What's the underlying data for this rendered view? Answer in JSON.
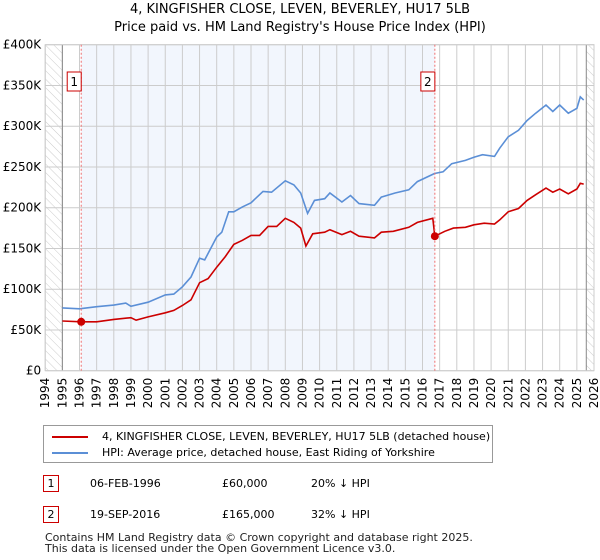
{
  "header": {
    "title": "4, KINGFISHER CLOSE, LEVEN, BEVERLEY, HU17 5LB",
    "subtitle": "Price paid vs. HM Land Registry's House Price Index (HPI)"
  },
  "chart_data": {
    "type": "line",
    "title": "4, KINGFISHER CLOSE, LEVEN, BEVERLEY, HU17 5LB",
    "subtitle": "Price paid vs. HM Land Registry's House Price Index (HPI)",
    "xlim": [
      1994,
      2026
    ],
    "ylim": [
      0,
      400000
    ],
    "x_ticks": [
      "1994",
      "1995",
      "1996",
      "1997",
      "1998",
      "1999",
      "2000",
      "2001",
      "2002",
      "2003",
      "2004",
      "2005",
      "2006",
      "2007",
      "2008",
      "2009",
      "2010",
      "2011",
      "2012",
      "2013",
      "2014",
      "2015",
      "2016",
      "2017",
      "2018",
      "2019",
      "2020",
      "2021",
      "2022",
      "2023",
      "2024",
      "2025",
      "2026"
    ],
    "y_ticks": [
      {
        "v": 0,
        "label": "£0"
      },
      {
        "v": 50000,
        "label": "£50K"
      },
      {
        "v": 100000,
        "label": "£100K"
      },
      {
        "v": 150000,
        "label": "£150K"
      },
      {
        "v": 200000,
        "label": "£200K"
      },
      {
        "v": 250000,
        "label": "£250K"
      },
      {
        "v": 300000,
        "label": "£300K"
      },
      {
        "v": 350000,
        "label": "£350K"
      },
      {
        "v": 400000,
        "label": "£400K"
      }
    ],
    "grid": true,
    "series": [
      {
        "name": "4, KINGFISHER CLOSE, LEVEN, BEVERLEY, HU17 5LB (detached house)",
        "color": "#cc0000",
        "x": [
          1995,
          1996.1,
          1997,
          1998,
          1999,
          1999.3,
          2000,
          2001,
          2001.5,
          2002,
          2002.5,
          2003,
          2003.5,
          2004,
          2004.5,
          2005,
          2005.5,
          2006,
          2006.5,
          2007,
          2007.5,
          2008,
          2008.5,
          2008.9,
          2009.2,
          2009.6,
          2010.3,
          2010.6,
          2011.3,
          2011.8,
          2012.3,
          2013.2,
          2013.6,
          2014.3,
          2015.2,
          2015.7,
          2016.6,
          2016.72,
          2017.3,
          2017.8,
          2018.5,
          2019,
          2019.6,
          2020.2,
          2020.5,
          2021,
          2021.6,
          2022.1,
          2022.6,
          2023.2,
          2023.6,
          2024,
          2024.5,
          2025,
          2025.2,
          2025.4
        ],
        "y": [
          61000,
          60000,
          60000,
          63000,
          65000,
          62000,
          66000,
          71000,
          74000,
          80000,
          87000,
          108000,
          113000,
          127000,
          140000,
          155000,
          160000,
          166000,
          166000,
          177000,
          177000,
          187000,
          182000,
          175000,
          153000,
          168000,
          170000,
          173000,
          167000,
          171000,
          165000,
          163000,
          170000,
          171000,
          176000,
          182000,
          187000,
          165000,
          171000,
          175000,
          176000,
          179000,
          181000,
          180000,
          185000,
          195000,
          199000,
          209000,
          216000,
          224000,
          219000,
          223000,
          217000,
          223000,
          230000,
          229000
        ]
      },
      {
        "name": "HPI: Average price, detached house, East Riding of Yorkshire",
        "color": "#5b8fd6",
        "x": [
          1995,
          1996,
          1997,
          1998,
          1998.7,
          1999,
          2000,
          2001,
          2001.5,
          2002,
          2002.5,
          2003,
          2003.3,
          2004,
          2004.3,
          2004.7,
          2005,
          2005.5,
          2006,
          2006.7,
          2007.2,
          2008,
          2008.5,
          2008.9,
          2009.3,
          2009.7,
          2010.3,
          2010.6,
          2011.3,
          2011.8,
          2012.3,
          2013.2,
          2013.6,
          2014.4,
          2015.2,
          2015.7,
          2016.7,
          2017.2,
          2017.7,
          2018.5,
          2019,
          2019.5,
          2020.2,
          2020.5,
          2021,
          2021.6,
          2022.1,
          2022.6,
          2023.2,
          2023.6,
          2024,
          2024.5,
          2025,
          2025.2,
          2025.4
        ],
        "y": [
          77000,
          76000,
          78500,
          80500,
          83000,
          79000,
          84000,
          93000,
          94000,
          103000,
          115000,
          138000,
          136000,
          164000,
          170000,
          195000,
          195000,
          201000,
          206000,
          220000,
          219000,
          233000,
          228000,
          218000,
          193000,
          209000,
          211000,
          218000,
          207000,
          215000,
          205000,
          203000,
          213000,
          218000,
          222000,
          232000,
          242000,
          244000,
          254000,
          258000,
          262000,
          265000,
          263000,
          273000,
          287000,
          295000,
          307000,
          316000,
          326000,
          318000,
          326000,
          316000,
          322000,
          336000,
          332000
        ]
      }
    ],
    "annotations": [
      {
        "label": "1",
        "x": 1996.1,
        "y": 60000
      },
      {
        "label": "2",
        "x": 2016.72,
        "y": 165000
      }
    ],
    "shaded_range": [
      1996.1,
      2016.72
    ],
    "hatched_ranges": [
      [
        1994,
        1995
      ],
      [
        2025.55,
        2026
      ]
    ],
    "legend_position": "bottom"
  },
  "legend": {
    "items": [
      {
        "label": "4, KINGFISHER CLOSE, LEVEN, BEVERLEY, HU17 5LB (detached house)",
        "color": "#cc0000"
      },
      {
        "label": "HPI: Average price, detached house, East Riding of Yorkshire",
        "color": "#5b8fd6"
      }
    ]
  },
  "sales": [
    {
      "num": "1",
      "date": "06-FEB-1996",
      "price": "£60,000",
      "hpi": "20% ↓ HPI"
    },
    {
      "num": "2",
      "date": "19-SEP-2016",
      "price": "£165,000",
      "hpi": "32% ↓ HPI"
    }
  ],
  "footer": {
    "line1": "Contains HM Land Registry data © Crown copyright and database right 2025.",
    "line2": "This data is licensed under the Open Government Licence v3.0."
  }
}
